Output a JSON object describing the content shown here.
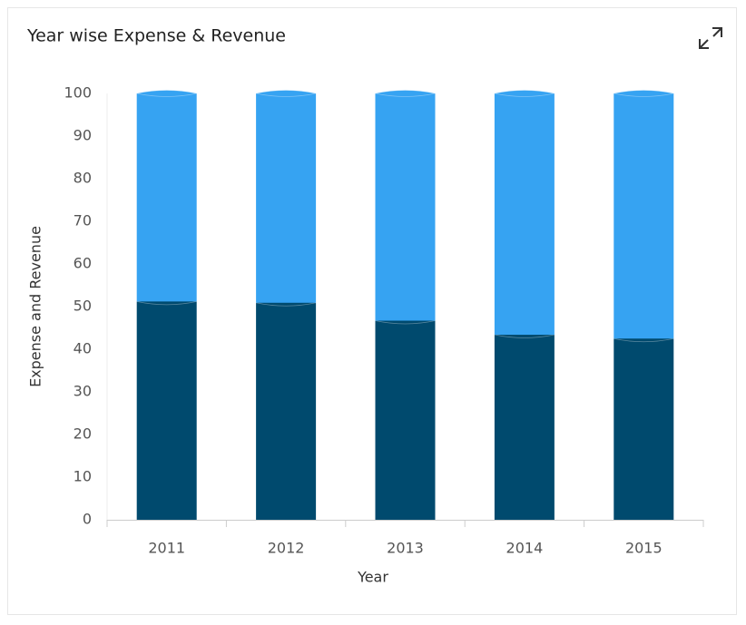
{
  "chart_data": {
    "type": "stacked_bar",
    "title": "Year wise Expense & Revenue",
    "x_label": "Year",
    "y_label": "Expense and Revenue",
    "categories": [
      "2011",
      "2012",
      "2013",
      "2014",
      "2015"
    ],
    "series": [
      {
        "color": "#004a6e",
        "values": [
          51.2,
          50.9,
          46.7,
          43.4,
          42.5
        ]
      },
      {
        "color": "#36a3f2",
        "values": [
          48.8,
          49.1,
          53.3,
          56.6,
          57.5
        ]
      }
    ],
    "ylim": [
      0,
      100
    ],
    "yticks": [
      0,
      10,
      20,
      30,
      40,
      50,
      60,
      70,
      80,
      90,
      100
    ]
  }
}
